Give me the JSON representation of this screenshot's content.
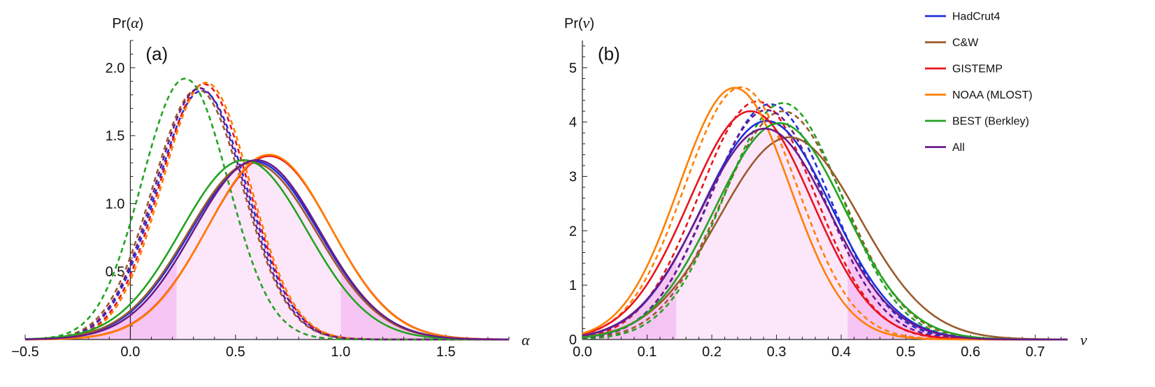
{
  "chart_data": [
    {
      "type": "line",
      "panel_label": "(a)",
      "ylabel_prefix": "Pr(",
      "ylabel_symbol": "α",
      "ylabel_suffix": ")",
      "xlabel": "α",
      "xlim": [
        -0.5,
        1.8
      ],
      "ylim": [
        0,
        2.2
      ],
      "xticks": [
        -0.5,
        0.0,
        0.5,
        1.0,
        1.5
      ],
      "xtick_labels": [
        "−0.5",
        "0.0",
        "0.5",
        "1.0",
        "1.5"
      ],
      "yticks": [
        0.5,
        1.0,
        1.5,
        2.0
      ],
      "ytick_labels": [
        "0.5",
        "1.0",
        "1.5",
        "2.0"
      ],
      "shading": {
        "color": "#f5b6f0",
        "intervals": [
          [
            -0.5,
            0.22
          ],
          [
            0.22,
            1.0
          ],
          [
            1.0,
            1.8
          ]
        ]
      },
      "series": [
        {
          "name": "HadCrut4",
          "color": "#1f2fd8",
          "style": "dashed",
          "mean": 0.34,
          "sd": 0.215,
          "peak": 1.83
        },
        {
          "name": "C&W",
          "color": "#9a5a2c",
          "style": "dashed",
          "mean": 0.32,
          "sd": 0.215,
          "peak": 1.84
        },
        {
          "name": "GISTEMP",
          "color": "#e8141c",
          "style": "dashed",
          "mean": 0.35,
          "sd": 0.211,
          "peak": 1.88
        },
        {
          "name": "NOAA (MLOST)",
          "color": "#ff7f00",
          "style": "dashed",
          "mean": 0.36,
          "sd": 0.21,
          "peak": 1.89
        },
        {
          "name": "BEST (Berkley)",
          "color": "#22a321",
          "style": "dashed",
          "mean": 0.26,
          "sd": 0.205,
          "peak": 1.92
        },
        {
          "name": "All",
          "color": "#6a1b8a",
          "style": "dashed",
          "mean": 0.33,
          "sd": 0.213,
          "peak": 1.85
        },
        {
          "name": "HadCrut4",
          "color": "#1f2fd8",
          "style": "solid",
          "mean": 0.59,
          "sd": 0.305,
          "peak": 1.31
        },
        {
          "name": "C&W",
          "color": "#9a5a2c",
          "style": "solid",
          "mean": 0.58,
          "sd": 0.305,
          "peak": 1.3
        },
        {
          "name": "GISTEMP",
          "color": "#e8141c",
          "style": "solid",
          "mean": 0.66,
          "sd": 0.295,
          "peak": 1.35
        },
        {
          "name": "NOAA (MLOST)",
          "color": "#ff7f00",
          "style": "solid",
          "mean": 0.66,
          "sd": 0.293,
          "peak": 1.36
        },
        {
          "name": "BEST (Berkley)",
          "color": "#22a321",
          "style": "solid",
          "mean": 0.54,
          "sd": 0.3,
          "peak": 1.32
        },
        {
          "name": "All",
          "color": "#6a1b8a",
          "style": "solid",
          "mean": 0.6,
          "sd": 0.3,
          "peak": 1.32
        }
      ]
    },
    {
      "type": "line",
      "panel_label": "(b)",
      "ylabel_prefix": "Pr(",
      "ylabel_symbol": "v",
      "ylabel_suffix": ")",
      "xlabel": "v",
      "xlim": [
        0,
        0.75
      ],
      "ylim": [
        0,
        5.5
      ],
      "xticks": [
        0,
        0.1,
        0.2,
        0.3,
        0.4,
        0.5,
        0.6,
        0.7
      ],
      "xtick_labels": [
        "0.0",
        "0.1",
        "0.2",
        "0.3",
        "0.4",
        "0.5",
        "0.6",
        "0.7"
      ],
      "yticks": [
        0,
        1,
        2,
        3,
        4,
        5
      ],
      "ytick_labels": [
        "0",
        "1",
        "2",
        "3",
        "4",
        "5"
      ],
      "shading": {
        "color": "#f5b6f0",
        "intervals": [
          [
            0,
            0.145
          ],
          [
            0.145,
            0.41
          ],
          [
            0.41,
            0.75
          ]
        ]
      },
      "series": [
        {
          "name": "HadCrut4",
          "color": "#1f2fd8",
          "style": "dashed",
          "mean": 0.29,
          "sd": 0.092,
          "peak": 4.33
        },
        {
          "name": "C&W",
          "color": "#9a5a2c",
          "style": "dashed",
          "mean": 0.31,
          "sd": 0.095,
          "peak": 4.2
        },
        {
          "name": "GISTEMP",
          "color": "#e8141c",
          "style": "dashed",
          "mean": 0.27,
          "sd": 0.09,
          "peak": 4.38
        },
        {
          "name": "NOAA (MLOST)",
          "color": "#ff7f00",
          "style": "dashed",
          "mean": 0.245,
          "sd": 0.087,
          "peak": 4.64
        },
        {
          "name": "BEST (Berkley)",
          "color": "#22a321",
          "style": "dashed",
          "mean": 0.31,
          "sd": 0.091,
          "peak": 4.35
        },
        {
          "name": "All",
          "color": "#6a1b8a",
          "style": "dashed",
          "mean": 0.285,
          "sd": 0.09,
          "peak": 4.22
        },
        {
          "name": "HadCrut4",
          "color": "#1f2fd8",
          "style": "solid",
          "mean": 0.285,
          "sd": 0.1,
          "peak": 4.02
        },
        {
          "name": "C&W",
          "color": "#9a5a2c",
          "style": "solid",
          "mean": 0.32,
          "sd": 0.108,
          "peak": 3.72
        },
        {
          "name": "GISTEMP",
          "color": "#e8141c",
          "style": "solid",
          "mean": 0.26,
          "sd": 0.095,
          "peak": 4.2
        },
        {
          "name": "NOAA (MLOST)",
          "color": "#ff7f00",
          "style": "solid",
          "mean": 0.235,
          "sd": 0.086,
          "peak": 4.63
        },
        {
          "name": "BEST (Berkley)",
          "color": "#22a321",
          "style": "solid",
          "mean": 0.305,
          "sd": 0.1,
          "peak": 3.98
        },
        {
          "name": "All",
          "color": "#6a1b8a",
          "style": "solid",
          "mean": 0.282,
          "sd": 0.1,
          "peak": 3.88
        }
      ]
    }
  ],
  "legend": {
    "placement": "top-right",
    "entries": [
      {
        "label": "HadCrut4",
        "color": "#1f2fd8"
      },
      {
        "label": "C&W",
        "color": "#9a5a2c"
      },
      {
        "label": "GISTEMP",
        "color": "#e8141c"
      },
      {
        "label": "NOAA (MLOST)",
        "color": "#ff7f00"
      },
      {
        "label": "BEST (Berkley)",
        "color": "#22a321"
      },
      {
        "label": "All",
        "color": "#6a1b8a"
      }
    ]
  }
}
